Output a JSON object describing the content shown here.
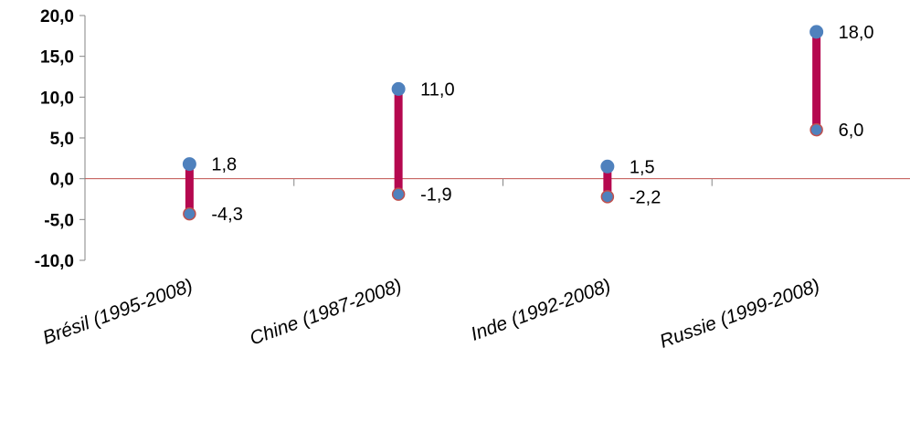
{
  "chart_data": {
    "type": "high-low",
    "categories": [
      "Brésil (1995-2008)",
      "Chine (1987-2008)",
      "Inde (1992-2008)",
      "Russie (1999-2008)"
    ],
    "series": [
      {
        "values": [
          1.8,
          11.0,
          1.5,
          18.0
        ]
      },
      {
        "values": [
          -4.3,
          -1.9,
          -2.2,
          6.0
        ]
      }
    ],
    "data_labels": {
      "high": [
        "1,8",
        "11,0",
        "1,5",
        "18,0"
      ],
      "low": [
        "-4,3",
        "-1,9",
        "-2,2",
        "6,0"
      ]
    },
    "yticks": [
      20,
      15,
      10,
      5,
      0,
      -5,
      -10
    ],
    "ytick_labels": [
      "20,0",
      "15,0",
      "10,0",
      "5,0",
      "0,0",
      "-5,0",
      "-10,0"
    ],
    "ylim": [
      -10,
      20
    ],
    "title": "",
    "xlabel": "",
    "ylabel": "",
    "grid": false,
    "colors": {
      "bar": "#B5084F",
      "high_marker": "#4F81BD",
      "low_marker": "#4F81BD",
      "low_marker_stroke": "#C0504D",
      "zero_line": "#C0504D",
      "axis": "#868686"
    }
  }
}
